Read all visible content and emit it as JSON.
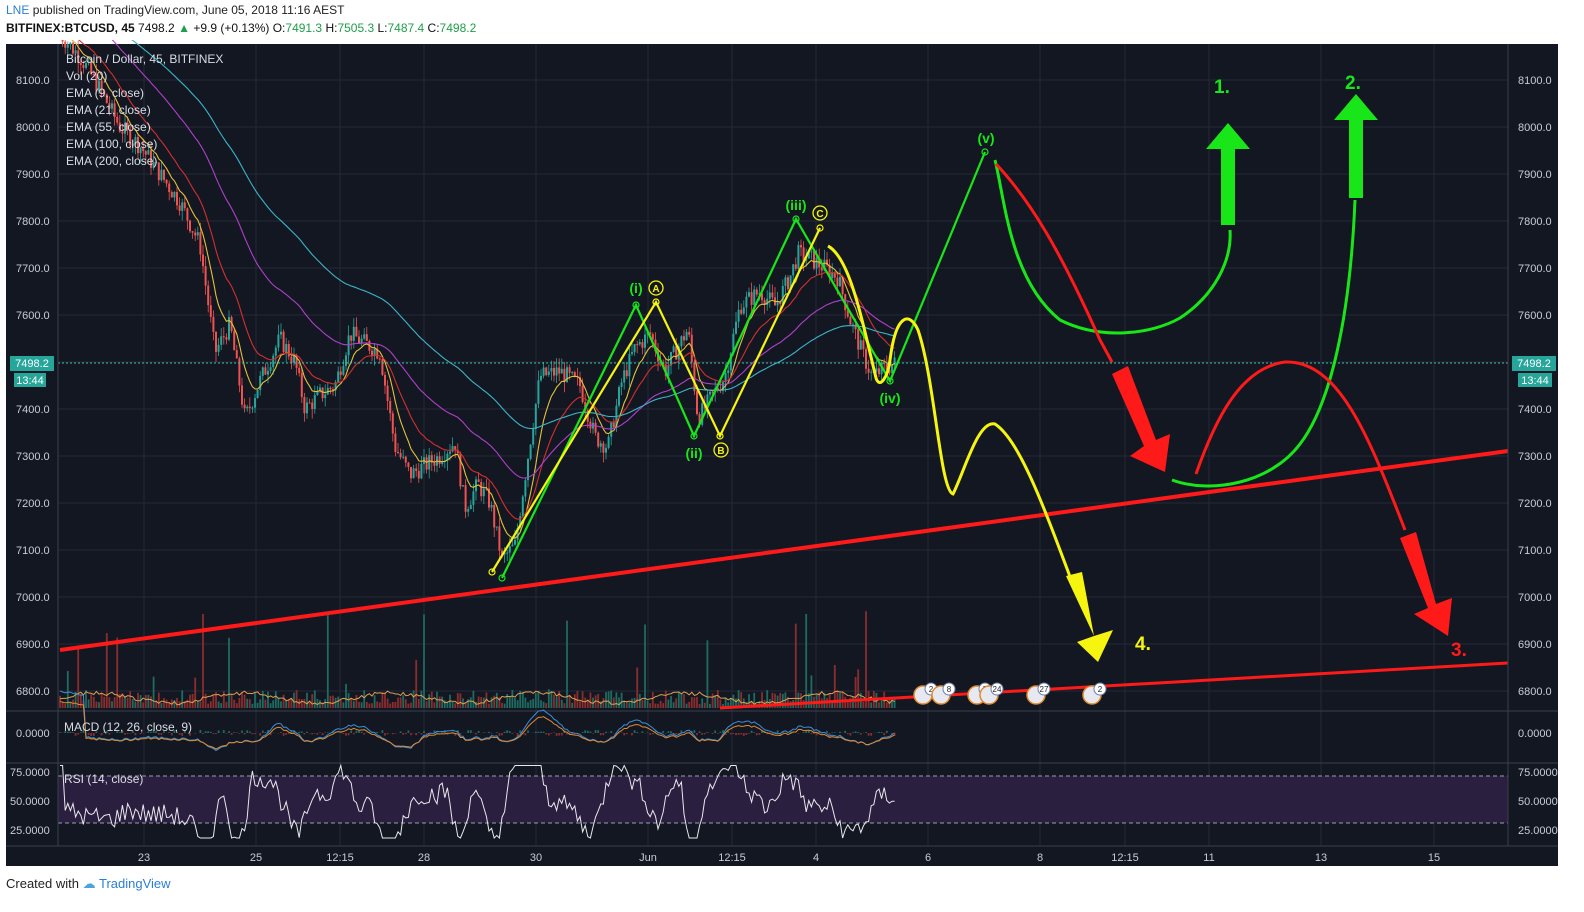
{
  "header": {
    "user": "LNE",
    "published": "published on TradingView.com, June 05, 2018 11:16 AEST",
    "symbol": "BITFINEX:BTCUSD, 45",
    "last": "7498.2",
    "change": "+9.9 (+0.13%)",
    "o_label": "O:",
    "o": "7491.3",
    "h_label": "H:",
    "h": "7505.3",
    "l_label": "L:",
    "l": "7487.4",
    "c_label": "C:",
    "c": "7498.2"
  },
  "footer": {
    "created": "Created with",
    "brand": "TradingView"
  },
  "legend": [
    "Bitcoin / Dollar, 45, BITFINEX",
    "Vol (20)",
    "EMA (9, close)",
    "EMA (21, close)",
    "EMA (55, close)",
    "EMA (100, close)",
    "EMA (200, close)"
  ],
  "macd_label": "MACD (12, 26, close, 9)",
  "rsi_label": "RSI (14, close)",
  "price_badge": "7498.2",
  "time_badge": "13:44",
  "colors": {
    "bg": "#131722",
    "grid": "#242938",
    "up": "#26a69a",
    "down": "#ef5350",
    "ema9": "#e3c13a",
    "ema21": "#d32f2f",
    "ema55": "#b040c8",
    "ema100": "#3cb4c8",
    "green": "#19e619",
    "yellow": "#f5f510",
    "red": "#ff1a1a"
  },
  "chart_data": {
    "type": "candlestick",
    "y_axis": {
      "ticks": [
        "8100.0",
        "8000.0",
        "7900.0",
        "7800.0",
        "7700.0",
        "7600.0",
        "7500.0",
        "7400.0",
        "7300.0",
        "7200.0",
        "7100.0",
        "7000.0",
        "6900.0",
        "6800.0"
      ],
      "range": [
        6770,
        8190
      ]
    },
    "x_axis": {
      "ticks": [
        "23",
        "25",
        "12:15",
        "28",
        "30",
        "Jun",
        "12:15",
        "4",
        "6",
        "8",
        "12:15",
        "11",
        "13",
        "15"
      ]
    },
    "macd_axis": {
      "ticks": [
        "0.0000"
      ]
    },
    "rsi_axis": {
      "ticks": [
        "75.0000",
        "50.0000",
        "25.0000"
      ],
      "range": [
        0,
        100
      ]
    },
    "price_path": [
      [
        55,
        8210
      ],
      [
        80,
        8150
      ],
      [
        100,
        8080
      ],
      [
        120,
        8000
      ],
      [
        140,
        7960
      ],
      [
        160,
        7900
      ],
      [
        180,
        7840
      ],
      [
        200,
        7750
      ],
      [
        215,
        7520
      ],
      [
        230,
        7580
      ],
      [
        245,
        7380
      ],
      [
        260,
        7460
      ],
      [
        280,
        7550
      ],
      [
        295,
        7500
      ],
      [
        305,
        7400
      ],
      [
        320,
        7430
      ],
      [
        335,
        7450
      ],
      [
        350,
        7560
      ],
      [
        365,
        7540
      ],
      [
        380,
        7520
      ],
      [
        395,
        7320
      ],
      [
        410,
        7260
      ],
      [
        425,
        7280
      ],
      [
        440,
        7300
      ],
      [
        455,
        7330
      ],
      [
        465,
        7190
      ],
      [
        478,
        7240
      ],
      [
        490,
        7200
      ],
      [
        502,
        7080
      ],
      [
        515,
        7110
      ],
      [
        528,
        7300
      ],
      [
        540,
        7470
      ],
      [
        560,
        7480
      ],
      [
        580,
        7450
      ],
      [
        595,
        7340
      ],
      [
        608,
        7320
      ],
      [
        622,
        7460
      ],
      [
        635,
        7530
      ],
      [
        650,
        7560
      ],
      [
        665,
        7480
      ],
      [
        675,
        7520
      ],
      [
        688,
        7570
      ],
      [
        698,
        7380
      ],
      [
        710,
        7420
      ],
      [
        725,
        7470
      ],
      [
        740,
        7620
      ],
      [
        760,
        7650
      ],
      [
        775,
        7620
      ],
      [
        790,
        7680
      ],
      [
        798,
        7730
      ],
      [
        810,
        7720
      ],
      [
        825,
        7700
      ],
      [
        838,
        7680
      ],
      [
        850,
        7590
      ],
      [
        862,
        7520
      ],
      [
        872,
        7470
      ],
      [
        880,
        7480
      ],
      [
        888,
        7490
      ],
      [
        896,
        7498
      ]
    ],
    "elliott_green_labels": [
      "(i)",
      "(ii)",
      "(iii)",
      "(iv)",
      "(v)"
    ],
    "elliott_yellow_labels": [
      "A",
      "B",
      "C"
    ],
    "scenarios": [
      "1.",
      "2.",
      "3.",
      "4."
    ],
    "event_badges": [
      "2",
      "8",
      "5",
      "24",
      "27",
      "2"
    ]
  }
}
